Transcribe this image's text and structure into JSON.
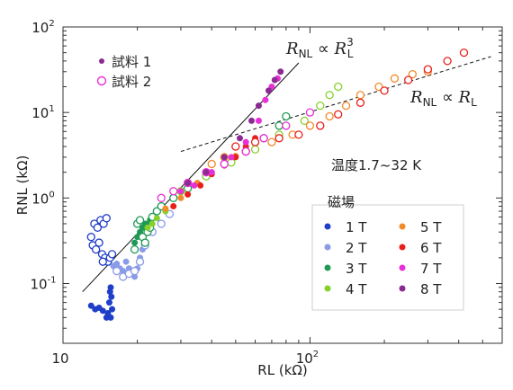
{
  "chart_data": {
    "type": "scatter",
    "xlabel": "RL (kΩ)",
    "ylabel": "RNL (kΩ)",
    "x_scale": "log",
    "y_scale": "log",
    "xlim": [
      10,
      600
    ],
    "ylim": [
      0.02,
      100
    ],
    "x_ticks": [
      {
        "value": 10,
        "base": "10",
        "exp": ""
      },
      {
        "value": 100,
        "base": "10",
        "exp": "2"
      }
    ],
    "y_ticks": [
      {
        "value": 0.1,
        "base": "10",
        "exp": "-1"
      },
      {
        "value": 1,
        "base": "10",
        "exp": "0"
      },
      {
        "value": 10,
        "base": "10",
        "exp": "1"
      },
      {
        "value": 100,
        "base": "10",
        "exp": "2"
      }
    ],
    "markers": [
      {
        "label": "試料 1",
        "style": "filled"
      },
      {
        "label": "試料 2",
        "style": "open"
      }
    ],
    "legend_title": "磁場",
    "series": [
      {
        "name": "1 T",
        "color": "#1f3fc9",
        "filled": [
          [
            13.0,
            0.055
          ],
          [
            13.5,
            0.05
          ],
          [
            14.0,
            0.052
          ],
          [
            14.5,
            0.048
          ],
          [
            15.0,
            0.04
          ],
          [
            15.2,
            0.045
          ],
          [
            15.4,
            0.06
          ],
          [
            15.5,
            0.08
          ],
          [
            15.6,
            0.09
          ],
          [
            15.7,
            0.07
          ],
          [
            15.8,
            0.05
          ],
          [
            15.6,
            0.04
          ]
        ],
        "open": [
          [
            13.0,
            0.35
          ],
          [
            13.4,
            0.5
          ],
          [
            13.8,
            0.45
          ],
          [
            14.2,
            0.55
          ],
          [
            14.6,
            0.5
          ],
          [
            15.0,
            0.58
          ],
          [
            13.2,
            0.28
          ],
          [
            13.6,
            0.25
          ],
          [
            14.0,
            0.3
          ],
          [
            14.4,
            0.22
          ],
          [
            14.8,
            0.2
          ],
          [
            15.2,
            0.18
          ],
          [
            15.5,
            0.2
          ],
          [
            15.8,
            0.22
          ],
          [
            14.5,
            0.18
          ]
        ]
      },
      {
        "name": "2 T",
        "color": "#8a9be8",
        "filled": [
          [
            16.0,
            0.16
          ],
          [
            16.5,
            0.17
          ],
          [
            17.0,
            0.15
          ],
          [
            17.5,
            0.14
          ],
          [
            18.0,
            0.18
          ],
          [
            18.5,
            0.15
          ],
          [
            19.0,
            0.13
          ],
          [
            19.5,
            0.12
          ],
          [
            20.0,
            0.15
          ],
          [
            20.5,
            0.2
          ],
          [
            21.0,
            0.25
          ]
        ],
        "open": [
          [
            16.5,
            0.14
          ],
          [
            17.5,
            0.12
          ],
          [
            18.5,
            0.13
          ],
          [
            19.5,
            0.14
          ],
          [
            20.5,
            0.18
          ],
          [
            21.5,
            0.28
          ],
          [
            23.0,
            0.4
          ],
          [
            25.0,
            0.5
          ],
          [
            27.0,
            0.65
          ]
        ]
      },
      {
        "name": "3 T",
        "color": "#1f9a55",
        "filled": [
          [
            19.5,
            0.3
          ],
          [
            20.0,
            0.35
          ],
          [
            20.5,
            0.4
          ],
          [
            21.0,
            0.45
          ],
          [
            21.5,
            0.5
          ],
          [
            22.0,
            0.48
          ],
          [
            22.5,
            0.55
          ]
        ],
        "open": [
          [
            19.5,
            0.25
          ],
          [
            20.0,
            0.5
          ],
          [
            20.5,
            0.55
          ],
          [
            21.0,
            0.35
          ],
          [
            21.5,
            0.3
          ],
          [
            22.0,
            0.4
          ],
          [
            22.5,
            0.45
          ],
          [
            23.0,
            0.6
          ],
          [
            24.0,
            0.7
          ],
          [
            25.0,
            0.8
          ],
          [
            28.0,
            1.0
          ],
          [
            32.0,
            1.3
          ],
          [
            38.0,
            1.8
          ],
          [
            45.0,
            2.5
          ],
          [
            55.0,
            3.5
          ],
          [
            65.0,
            5.0
          ],
          [
            75.0,
            7.0
          ],
          [
            80.0,
            9.0
          ]
        ]
      },
      {
        "name": "4 T",
        "color": "#86d02a",
        "filled": [
          [
            22.0,
            0.45
          ],
          [
            23.0,
            0.5
          ],
          [
            24.0,
            0.58
          ],
          [
            26.0,
            0.7
          ]
        ],
        "open": [
          [
            30.0,
            1.2
          ],
          [
            38.0,
            1.8
          ],
          [
            48.0,
            2.6
          ],
          [
            60.0,
            3.7
          ],
          [
            75.0,
            5.5
          ],
          [
            95.0,
            8.0
          ],
          [
            110.0,
            12.0
          ],
          [
            120.0,
            16.0
          ],
          [
            130.0,
            20.0
          ]
        ]
      },
      {
        "name": "5 T",
        "color": "#f08a2a",
        "filled": [
          [
            26.0,
            0.75
          ],
          [
            30.0,
            1.0
          ],
          [
            35.0,
            1.5
          ],
          [
            40.0,
            2.0
          ],
          [
            45.0,
            2.6
          ],
          [
            50.0,
            3.1
          ]
        ],
        "open": [
          [
            40.0,
            2.5
          ],
          [
            45.0,
            3.0
          ],
          [
            55.0,
            3.5
          ],
          [
            70.0,
            4.5
          ],
          [
            85.0,
            5.5
          ],
          [
            100.0,
            7.0
          ],
          [
            120.0,
            9.0
          ],
          [
            140.0,
            12.0
          ],
          [
            160.0,
            16.0
          ],
          [
            190.0,
            20.0
          ],
          [
            220.0,
            25.0
          ],
          [
            260.0,
            28.0
          ],
          [
            300.0,
            30.0
          ]
        ]
      },
      {
        "name": "6 T",
        "color": "#e8201c",
        "filled": [
          [
            28.0,
            0.8
          ],
          [
            32.0,
            1.1
          ],
          [
            36.0,
            1.4
          ],
          [
            40.0,
            1.9
          ],
          [
            45.0,
            2.4
          ],
          [
            50.0,
            3.0
          ],
          [
            55.0,
            4.0
          ],
          [
            60.0,
            5.0
          ]
        ],
        "open": [
          [
            50.0,
            4.0
          ],
          [
            60.0,
            4.5
          ],
          [
            75.0,
            5.0
          ],
          [
            90.0,
            5.5
          ],
          [
            110.0,
            7.0
          ],
          [
            130.0,
            9.5
          ],
          [
            160.0,
            13.0
          ],
          [
            200.0,
            18.0
          ],
          [
            250.0,
            24.0
          ],
          [
            300.0,
            32.0
          ],
          [
            360.0,
            40.0
          ],
          [
            420.0,
            50.0
          ]
        ]
      },
      {
        "name": "7 T",
        "color": "#e830d8",
        "filled": [
          [
            30.0,
            1.2
          ],
          [
            34.0,
            1.4
          ],
          [
            40.0,
            2.0
          ],
          [
            48.0,
            3.0
          ],
          [
            55.0,
            4.5
          ],
          [
            62.0,
            8.0
          ],
          [
            66.0,
            14.0
          ],
          [
            70.0,
            20.0
          ],
          [
            74.0,
            25.0
          ]
        ],
        "open": [
          [
            25.0,
            1.0
          ],
          [
            28.0,
            1.2
          ],
          [
            32.0,
            1.5
          ],
          [
            38.0,
            2.0
          ],
          [
            45.0,
            2.5
          ],
          [
            55.0,
            3.5
          ],
          [
            65.0,
            5.0
          ],
          [
            80.0,
            7.0
          ],
          [
            100.0,
            10.0
          ]
        ]
      },
      {
        "name": "8 T",
        "color": "#8a2a92",
        "filled": [
          [
            32.0,
            1.5
          ],
          [
            38.0,
            2.0
          ],
          [
            45.0,
            3.0
          ],
          [
            52.0,
            5.0
          ],
          [
            58.0,
            8.0
          ],
          [
            62.0,
            12.0
          ],
          [
            68.0,
            18.0
          ],
          [
            72.0,
            24.0
          ],
          [
            76.0,
            30.0
          ]
        ],
        "open": []
      }
    ],
    "fits": [
      {
        "label_main": "R",
        "label_sub": "NL",
        "op": "∝",
        "label_rhs": "R",
        "rhs_sub": "L",
        "rhs_sup": "3",
        "x": [
          12,
          90
        ],
        "y": [
          0.08,
          38
        ],
        "style": "solid"
      },
      {
        "label_main": "R",
        "label_sub": "NL",
        "op": "∝",
        "label_rhs": "R",
        "rhs_sub": "L",
        "rhs_sup": "",
        "x": [
          30,
          540
        ],
        "y": [
          3.5,
          45
        ],
        "style": "dashed"
      }
    ],
    "annotation": "温度1.7~32 K",
    "legend_placement": "bottom-right"
  }
}
